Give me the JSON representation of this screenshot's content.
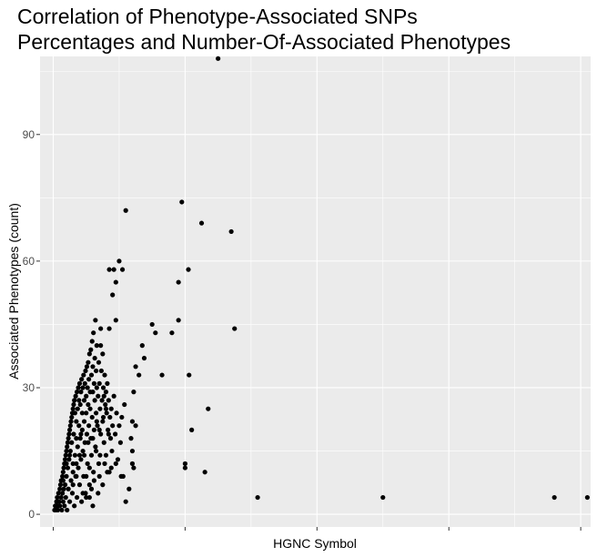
{
  "chart_data": {
    "type": "scatter",
    "title_lines": [
      "Correlation of Phenotype-Associated SNPs",
      "Percentages and Number-Of-Associated Phenotypes"
    ],
    "xlabel": "HGNC Symbol",
    "ylabel": "Associated Phenotypes (count)",
    "ylim": [
      -3,
      108.5
    ],
    "xlim": [
      -0.2,
      8.15
    ],
    "y_ticks": [
      0,
      30,
      60,
      90
    ],
    "y_tick_labels": [
      "0",
      "30",
      "60",
      "90"
    ],
    "x_ticks": [
      0,
      2,
      4,
      6,
      8
    ],
    "x_tick_labels": [
      "",
      "",
      "",
      "",
      ""
    ],
    "grid": true,
    "panel_background": "#ebebeb",
    "grid_color": "#ffffff",
    "point_color": "#000000",
    "series": [
      {
        "points": [
          [
            0.02,
            1
          ],
          [
            0.03,
            2
          ],
          [
            0.04,
            1
          ],
          [
            0.05,
            3
          ],
          [
            0.06,
            2
          ],
          [
            0.06,
            4
          ],
          [
            0.07,
            1
          ],
          [
            0.08,
            5
          ],
          [
            0.09,
            3
          ],
          [
            0.1,
            6
          ],
          [
            0.1,
            2
          ],
          [
            0.11,
            7
          ],
          [
            0.12,
            4
          ],
          [
            0.12,
            8
          ],
          [
            0.13,
            1
          ],
          [
            0.14,
            9
          ],
          [
            0.14,
            5
          ],
          [
            0.15,
            10
          ],
          [
            0.15,
            3
          ],
          [
            0.16,
            11
          ],
          [
            0.16,
            6
          ],
          [
            0.17,
            12
          ],
          [
            0.17,
            2
          ],
          [
            0.18,
            13
          ],
          [
            0.18,
            7
          ],
          [
            0.19,
            14
          ],
          [
            0.19,
            4
          ],
          [
            0.2,
            15
          ],
          [
            0.2,
            9
          ],
          [
            0.21,
            16
          ],
          [
            0.21,
            1
          ],
          [
            0.22,
            17
          ],
          [
            0.22,
            11
          ],
          [
            0.23,
            18
          ],
          [
            0.23,
            6
          ],
          [
            0.24,
            19
          ],
          [
            0.24,
            13
          ],
          [
            0.25,
            20
          ],
          [
            0.25,
            3
          ],
          [
            0.26,
            21
          ],
          [
            0.26,
            15
          ],
          [
            0.27,
            22
          ],
          [
            0.27,
            8
          ],
          [
            0.28,
            23
          ],
          [
            0.28,
            17
          ],
          [
            0.29,
            24
          ],
          [
            0.29,
            5
          ],
          [
            0.3,
            25
          ],
          [
            0.3,
            12
          ],
          [
            0.31,
            26
          ],
          [
            0.31,
            19
          ],
          [
            0.32,
            27
          ],
          [
            0.32,
            2
          ],
          [
            0.33,
            24
          ],
          [
            0.33,
            14
          ],
          [
            0.34,
            28
          ],
          [
            0.34,
            9
          ],
          [
            0.35,
            22
          ],
          [
            0.35,
            18
          ],
          [
            0.36,
            29
          ],
          [
            0.36,
            4
          ],
          [
            0.37,
            25
          ],
          [
            0.37,
            16
          ],
          [
            0.38,
            30
          ],
          [
            0.38,
            11
          ],
          [
            0.39,
            27
          ],
          [
            0.39,
            21
          ],
          [
            0.4,
            31
          ],
          [
            0.4,
            7
          ],
          [
            0.41,
            26
          ],
          [
            0.41,
            18
          ],
          [
            0.42,
            29
          ],
          [
            0.42,
            13
          ],
          [
            0.43,
            32
          ],
          [
            0.43,
            3
          ],
          [
            0.44,
            24
          ],
          [
            0.44,
            20
          ],
          [
            0.45,
            30
          ],
          [
            0.45,
            15
          ],
          [
            0.46,
            33
          ],
          [
            0.46,
            9
          ],
          [
            0.47,
            27
          ],
          [
            0.47,
            22
          ],
          [
            0.48,
            31
          ],
          [
            0.48,
            17
          ],
          [
            0.49,
            34
          ],
          [
            0.49,
            5
          ],
          [
            0.5,
            28
          ],
          [
            0.5,
            24
          ],
          [
            0.51,
            35
          ],
          [
            0.51,
            19
          ],
          [
            0.52,
            30
          ],
          [
            0.52,
            12
          ],
          [
            0.53,
            36
          ],
          [
            0.53,
            26
          ],
          [
            0.54,
            32
          ],
          [
            0.54,
            21
          ],
          [
            0.55,
            38
          ],
          [
            0.55,
            7
          ],
          [
            0.56,
            29
          ],
          [
            0.56,
            25
          ],
          [
            0.57,
            39
          ],
          [
            0.57,
            18
          ],
          [
            0.58,
            33
          ],
          [
            0.58,
            14
          ],
          [
            0.59,
            41
          ],
          [
            0.59,
            23
          ],
          [
            0.6,
            35
          ],
          [
            0.6,
            29
          ],
          [
            0.61,
            43
          ],
          [
            0.61,
            10
          ],
          [
            0.62,
            31
          ],
          [
            0.62,
            20
          ],
          [
            0.63,
            37
          ],
          [
            0.63,
            27
          ],
          [
            0.64,
            46
          ],
          [
            0.64,
            16
          ],
          [
            0.65,
            34
          ],
          [
            0.65,
            24
          ],
          [
            0.66,
            40
          ],
          [
            0.66,
            30
          ],
          [
            0.67,
            21
          ],
          [
            0.68,
            28
          ],
          [
            0.69,
            36
          ],
          [
            0.69,
            12
          ],
          [
            0.7,
            31
          ],
          [
            0.71,
            25
          ],
          [
            0.72,
            40
          ],
          [
            0.72,
            19
          ],
          [
            0.73,
            34
          ],
          [
            0.74,
            27
          ],
          [
            0.75,
            38
          ],
          [
            0.75,
            22
          ],
          [
            0.76,
            30
          ],
          [
            0.77,
            17
          ],
          [
            0.78,
            33
          ],
          [
            0.79,
            26
          ],
          [
            0.8,
            29
          ],
          [
            0.8,
            14
          ],
          [
            0.81,
            24
          ],
          [
            0.82,
            31
          ],
          [
            0.83,
            20
          ],
          [
            0.84,
            27
          ],
          [
            0.85,
            10
          ],
          [
            0.86,
            23
          ],
          [
            0.87,
            18
          ],
          [
            0.88,
            25
          ],
          [
            0.89,
            15
          ],
          [
            0.9,
            21
          ],
          [
            0.92,
            28
          ],
          [
            0.94,
            19
          ],
          [
            0.96,
            24
          ],
          [
            0.98,
            13
          ],
          [
            1.0,
            21
          ],
          [
            1.02,
            17
          ],
          [
            1.04,
            23
          ],
          [
            1.06,
            9
          ],
          [
            0.5,
            9
          ],
          [
            0.55,
            11
          ],
          [
            0.58,
            6
          ],
          [
            0.62,
            8
          ],
          [
            0.7,
            9
          ],
          [
            0.78,
            12
          ],
          [
            0.82,
            10
          ],
          [
            0.88,
            11
          ],
          [
            0.95,
            12
          ],
          [
            1.03,
            9
          ],
          [
            1.1,
            3
          ],
          [
            1.15,
            6
          ],
          [
            1.2,
            12
          ],
          [
            1.2,
            22
          ],
          [
            1.25,
            21
          ],
          [
            1.22,
            11
          ],
          [
            1.2,
            15
          ],
          [
            1.22,
            29
          ],
          [
            1.25,
            35
          ],
          [
            1.3,
            33
          ],
          [
            1.35,
            40
          ],
          [
            1.38,
            37
          ],
          [
            1.18,
            18
          ],
          [
            1.08,
            26
          ],
          [
            0.72,
            44
          ],
          [
            0.85,
            44
          ],
          [
            0.95,
            46
          ],
          [
            0.9,
            52
          ],
          [
            0.95,
            55
          ],
          [
            1.05,
            58
          ],
          [
            0.85,
            58
          ],
          [
            0.92,
            58
          ],
          [
            1.0,
            60
          ],
          [
            1.1,
            72
          ],
          [
            1.5,
            45
          ],
          [
            1.55,
            43
          ],
          [
            1.9,
            46
          ],
          [
            1.65,
            33
          ],
          [
            1.8,
            43
          ],
          [
            1.9,
            55
          ],
          [
            1.95,
            74
          ],
          [
            2.05,
            58
          ],
          [
            2.25,
            69
          ],
          [
            2.0,
            11
          ],
          [
            2.0,
            12
          ],
          [
            2.1,
            20
          ],
          [
            2.3,
            10
          ],
          [
            2.35,
            25
          ],
          [
            2.06,
            33
          ],
          [
            2.5,
            108
          ],
          [
            2.7,
            67
          ],
          [
            2.75,
            44
          ],
          [
            3.1,
            4
          ],
          [
            5.0,
            4
          ],
          [
            7.6,
            4
          ],
          [
            8.1,
            4
          ],
          [
            0.15,
            8
          ],
          [
            0.2,
            12
          ],
          [
            0.25,
            14
          ],
          [
            0.3,
            7
          ],
          [
            0.35,
            9
          ],
          [
            0.4,
            14
          ],
          [
            0.45,
            5
          ],
          [
            0.5,
            4
          ],
          [
            0.55,
            4
          ],
          [
            0.6,
            2
          ],
          [
            0.68,
            5
          ],
          [
            0.75,
            7
          ],
          [
            0.3,
            10
          ],
          [
            0.35,
            12
          ],
          [
            0.42,
            19
          ],
          [
            0.47,
            14
          ],
          [
            0.53,
            17
          ],
          [
            0.66,
            22
          ],
          [
            0.71,
            14
          ],
          [
            0.76,
            23
          ],
          [
            0.84,
            19
          ],
          [
            0.6,
            18
          ],
          [
            0.65,
            15
          ],
          [
            0.77,
            28
          ],
          [
            0.8,
            25
          ],
          [
            0.7,
            20
          ]
        ]
      }
    ]
  }
}
